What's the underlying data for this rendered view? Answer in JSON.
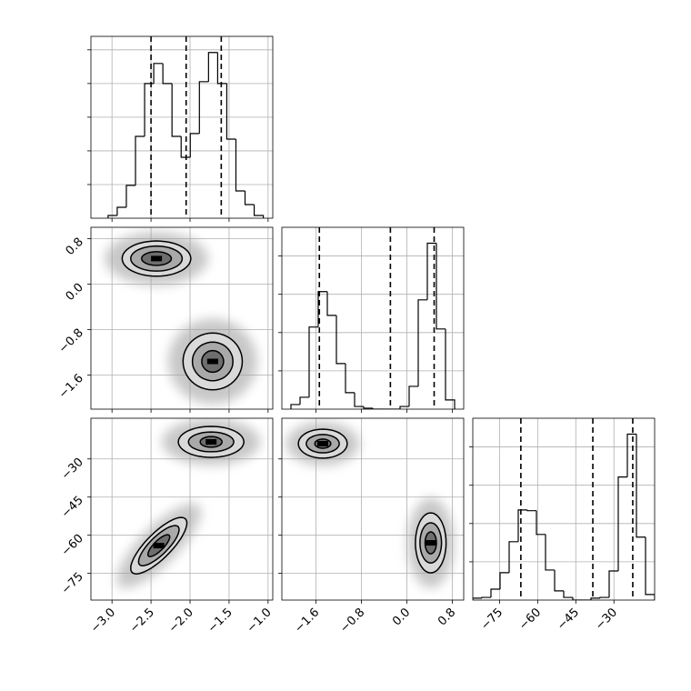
{
  "chart_data": {
    "type": "corner",
    "grid": true,
    "color": "#000000",
    "params": [
      {
        "lim": [
          -3.27,
          -0.94
        ],
        "ticks": [
          {
            "value": -3,
            "label": "−3.0"
          },
          {
            "value": -2.5,
            "label": "−2.5"
          },
          {
            "value": -2,
            "label": "−2.0"
          },
          {
            "value": -1.5,
            "label": "−1.5"
          },
          {
            "value": -1,
            "label": "−1.0"
          }
        ],
        "quantiles": [
          -2.5,
          -2.05,
          -1.6
        ],
        "bins": [
          -3.05,
          -2.933,
          -2.816,
          -2.699,
          -2.582,
          -2.465,
          -2.348,
          -2.231,
          -2.114,
          -1.997,
          -1.88,
          -1.763,
          -1.646,
          -1.529,
          -1.412,
          -1.295,
          -1.178,
          -1.061
        ],
        "counts": [
          16,
          65,
          195,
          486,
          800,
          919,
          800,
          486,
          362,
          503,
          811,
          984,
          800,
          470,
          162,
          81,
          16
        ],
        "count_lim": [
          0,
          1080
        ],
        "count_ticks": [
          200,
          400,
          600,
          800,
          1000
        ]
      },
      {
        "lim": [
          -2.2,
          1.0
        ],
        "ticks": [
          {
            "value": -1.6,
            "label": "−1.6"
          },
          {
            "value": -0.8,
            "label": "−0.8"
          },
          {
            "value": 0,
            "label": "0.0"
          },
          0.8
        ],
        "quantiles": [
          -1.54,
          -0.29,
          0.48
        ],
        "bins": [
          -2.04,
          -1.88,
          -1.72,
          -1.56,
          -1.4,
          -1.24,
          -1.08,
          -0.92,
          -0.76,
          -0.6,
          -0.44,
          -0.28,
          -0.12,
          0.04,
          0.2,
          0.36,
          0.52,
          0.68,
          0.84
        ],
        "counts": [
          24,
          62,
          429,
          614,
          490,
          238,
          86,
          14,
          5,
          0,
          0,
          0,
          14,
          119,
          571,
          867,
          419,
          48
        ],
        "count_lim": [
          0,
          950
        ],
        "count_ticks": [
          200,
          400,
          600,
          800
        ]
      },
      {
        "lim": [
          -85.5,
          -14
        ],
        "ticks": [
          {
            "value": -75,
            "label": "−75"
          },
          {
            "value": -60,
            "label": "−60"
          },
          {
            "value": -45,
            "label": "−45"
          },
          {
            "value": -30,
            "label": "−30"
          }
        ],
        "quantiles": [
          -66.6,
          -38.3,
          -22.6
        ],
        "bins": [
          -85.5,
          -81.925,
          -78.35,
          -74.775,
          -71.2,
          -67.625,
          -64.05,
          -60.475,
          -56.9,
          -53.325,
          -49.75,
          -46.175,
          -42.6,
          -39.025,
          -35.45,
          -31.875,
          -28.3,
          -24.725,
          -21.15,
          -17.575,
          -14
        ],
        "counts": [
          10,
          14,
          57,
          143,
          305,
          471,
          467,
          343,
          157,
          48,
          14,
          0,
          0,
          10,
          14,
          152,
          643,
          867,
          329,
          29
        ],
        "count_lim": [
          0,
          950
        ],
        "count_ticks": [
          200,
          400,
          600,
          800
        ]
      }
    ],
    "contours": [
      [],
      [
        [
          {
            "x": -2.43,
            "y": 0.45,
            "r": 0,
            "levels": [
              {
                "dx": 0.44,
                "dy": 0.31
              },
              {
                "dx": 0.33,
                "dy": 0.22
              },
              {
                "dx": 0.19,
                "dy": 0.12
              }
            ]
          },
          {
            "x": -1.71,
            "y": -1.36,
            "r": 0,
            "levels": [
              {
                "dx": 0.38,
                "dy": 0.5
              },
              {
                "dx": 0.26,
                "dy": 0.34
              },
              {
                "dx": 0.14,
                "dy": 0.19
              }
            ]
          }
        ]
      ],
      [
        [
          {
            "x": -1.73,
            "y": -23.3,
            "r": 0,
            "levels": [
              {
                "dx": 0.42,
                "dy": 6.1
              },
              {
                "dx": 0.29,
                "dy": 3.9
              },
              {
                "dx": 0.14,
                "dy": 2.1
              }
            ]
          },
          {
            "x": -2.4,
            "y": -64.1,
            "r": 0.8,
            "levels": [
              {
                "dx": 0.36,
                "dy": 11.1
              },
              {
                "dx": 0.26,
                "dy": 7.9
              },
              {
                "dx": 0.14,
                "dy": 4.3
              }
            ]
          }
        ],
        [
          {
            "x": -1.48,
            "y": -24.0,
            "r": 0,
            "levels": [
              {
                "dx": 0.43,
                "dy": 5.7
              },
              {
                "dx": 0.29,
                "dy": 3.6
              },
              {
                "dx": 0.14,
                "dy": 1.8
              }
            ]
          },
          {
            "x": 0.42,
            "y": -63.0,
            "r": 0,
            "levels": [
              {
                "dx": 0.27,
                "dy": 11.8
              },
              {
                "dx": 0.19,
                "dy": 7.9
              },
              {
                "dx": 0.1,
                "dy": 4.3
              }
            ]
          }
        ]
      ]
    ]
  }
}
